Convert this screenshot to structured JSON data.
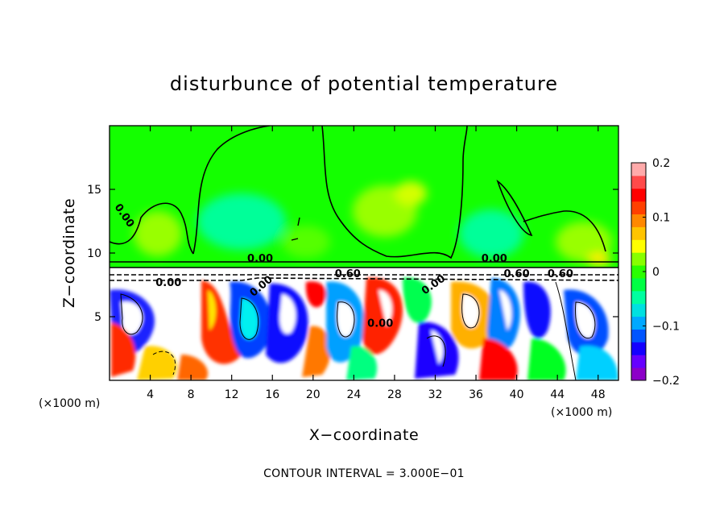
{
  "chart_data": {
    "type": "heatmap",
    "title": "disturbunce of potential temperature",
    "xlabel": "X−coordinate",
    "ylabel": "Z−coordinate",
    "x_unit_left": "(×1000 m)",
    "x_unit_right": "(×1000 m)",
    "xlim": [
      0,
      50
    ],
    "ylim": [
      0,
      20
    ],
    "x_ticks": [
      4,
      8,
      12,
      16,
      20,
      24,
      28,
      32,
      36,
      40,
      44,
      48
    ],
    "x_tick_labels": [
      "4",
      "8",
      "12",
      "16",
      "20",
      "24",
      "28",
      "32",
      "36",
      "40",
      "44",
      "48"
    ],
    "y_ticks": [
      5,
      10,
      15
    ],
    "y_tick_labels": [
      "5",
      "10",
      "15"
    ],
    "colorbar": {
      "range": [
        -0.2,
        0.2
      ],
      "ticks": [
        0.2,
        0.1,
        0,
        -0.1,
        -0.2
      ],
      "tick_labels": [
        "0.2",
        "0.1",
        "0",
        "−0.1",
        "−0.2"
      ],
      "colors": [
        "#8c00c8",
        "#6600ff",
        "#1400ff",
        "#0055ff",
        "#00a8ff",
        "#00e0e0",
        "#00ffa0",
        "#00ff44",
        "#2aff00",
        "#88ff00",
        "#ffff00",
        "#ffc400",
        "#ff8800",
        "#ff4000",
        "#ff0000",
        "#ff4a4a",
        "#ffaaaa"
      ]
    },
    "contour_labels": [
      {
        "text": "0.00",
        "x": 1.2,
        "y": 12.8,
        "rotation": 55
      },
      {
        "text": "0.00",
        "x": 14.8,
        "y": 9.3,
        "rotation": 0
      },
      {
        "text": "0.00",
        "x": 37.8,
        "y": 9.3,
        "rotation": 0
      },
      {
        "text": "0.00",
        "x": 5.8,
        "y": 7.4,
        "rotation": 0
      },
      {
        "text": "0.60",
        "x": 23.4,
        "y": 8.1,
        "rotation": 0
      },
      {
        "text": "0.60",
        "x": 40.0,
        "y": 8.1,
        "rotation": 0
      },
      {
        "text": "0.60",
        "x": 44.3,
        "y": 8.1,
        "rotation": 0
      },
      {
        "text": "0.00",
        "x": 15.1,
        "y": 7.2,
        "rotation": -40
      },
      {
        "text": "0.00",
        "x": 32.0,
        "y": 7.3,
        "rotation": -35
      },
      {
        "text": "0.00",
        "x": 26.6,
        "y": 4.2,
        "rotation": 0
      }
    ],
    "footer": "CONTOUR INTERVAL = 3.000E−01"
  }
}
